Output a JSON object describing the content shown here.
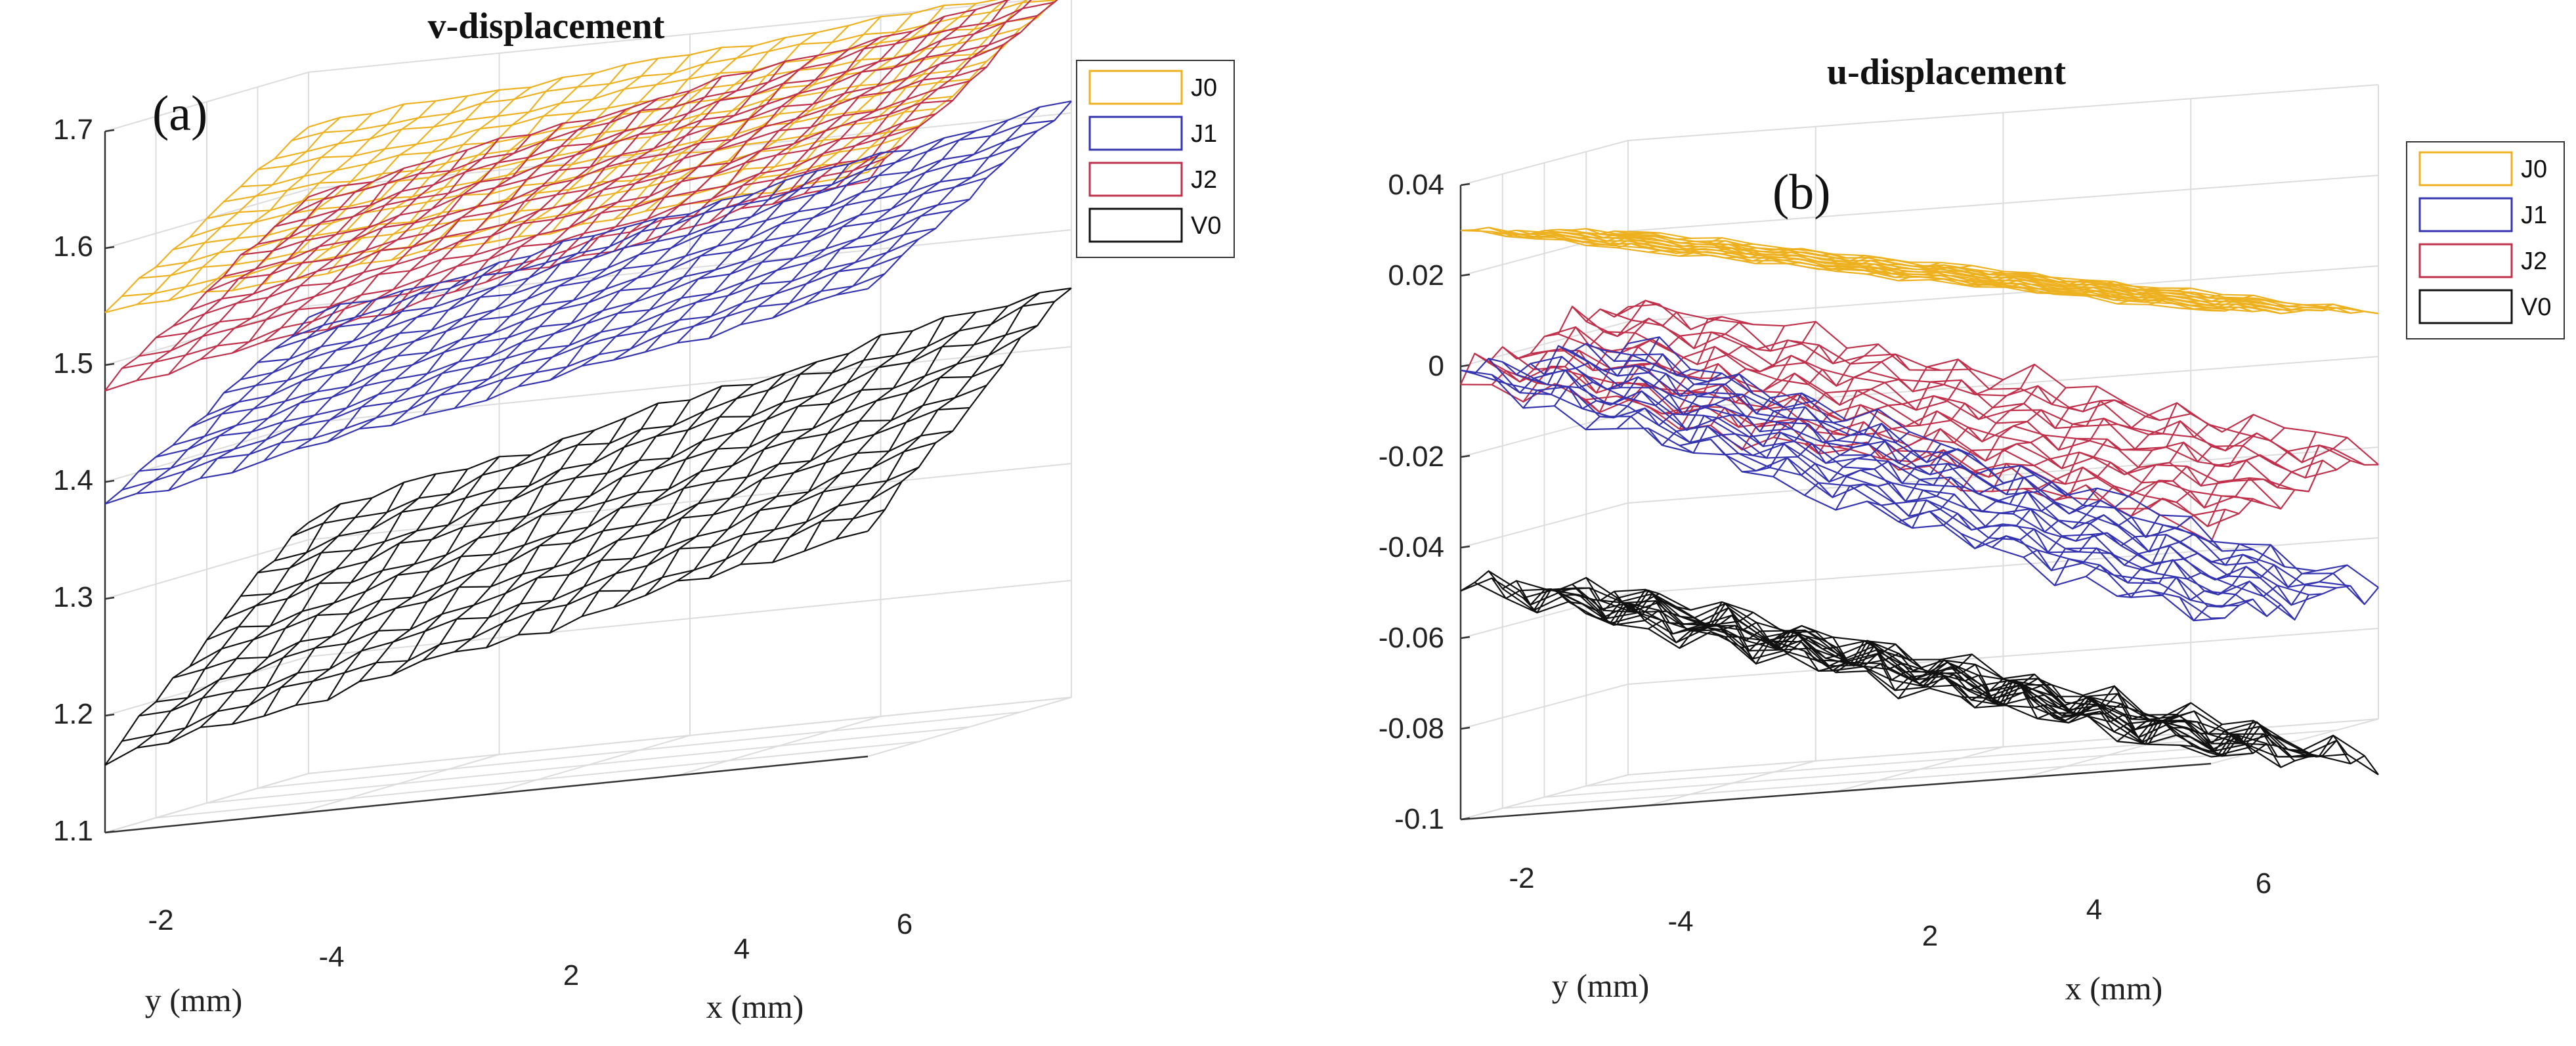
{
  "chart_data": [
    {
      "type": "surface",
      "title": "v-displacement",
      "panel_label": "(a)",
      "xlabel": "x (mm)",
      "ylabel": "y (mm)",
      "zlim": [
        1.1,
        1.7
      ],
      "z_ticks": [
        "1.1",
        "1.2",
        "1.3",
        "1.4",
        "1.5",
        "1.6",
        "1.7"
      ],
      "x_ticks": [
        "2",
        "4",
        "6"
      ],
      "y_ticks": [
        "-2",
        "-4"
      ],
      "grid": true,
      "legend_position": "top-right",
      "legend": [
        "J0",
        "J1",
        "J2",
        "V0"
      ],
      "series": [
        {
          "name": "J0",
          "color": "#EDB120",
          "z_front": 1.545,
          "z_right": 1.6,
          "z_back": 1.655
        },
        {
          "name": "J2",
          "color": "#C0304A",
          "z_front": 1.48,
          "z_right": 1.595,
          "z_back": 1.595
        },
        {
          "name": "J1",
          "color": "#3434B0",
          "z_front": 1.38,
          "z_right": 1.5,
          "z_back": 1.49
        },
        {
          "name": "V0",
          "color": "#111111",
          "z_front": 1.16,
          "z_right": 1.295,
          "z_back": 1.32
        }
      ]
    },
    {
      "type": "surface",
      "title": "u-displacement",
      "panel_label": "(b)",
      "xlabel": "x (mm)",
      "ylabel": "y (mm)",
      "zlim": [
        -0.1,
        0.04
      ],
      "z_ticks": [
        "-0.1",
        "-0.08",
        "-0.06",
        "-0.04",
        "-0.02",
        "0",
        "0.02",
        "0.04"
      ],
      "x_ticks": [
        "2",
        "4",
        "6"
      ],
      "y_ticks": [
        "-2",
        "-4"
      ],
      "grid": true,
      "legend_position": "top-right",
      "legend": [
        "J0",
        "J1",
        "J2",
        "V0"
      ],
      "series": [
        {
          "name": "J0",
          "color": "#EDB120",
          "z_front": 0.03,
          "z_right": 0.0,
          "z_back": 0.02
        },
        {
          "name": "J2",
          "color": "#C0304A",
          "z_front": -0.002,
          "z_right": -0.048,
          "z_back": 0.005
        },
        {
          "name": "J1",
          "color": "#3434B0",
          "z_front": -0.002,
          "z_right": -0.068,
          "z_back": -0.005
        },
        {
          "name": "V0",
          "color": "#111111",
          "z_front": -0.048,
          "z_right": -0.097,
          "z_back": -0.06
        }
      ]
    }
  ]
}
